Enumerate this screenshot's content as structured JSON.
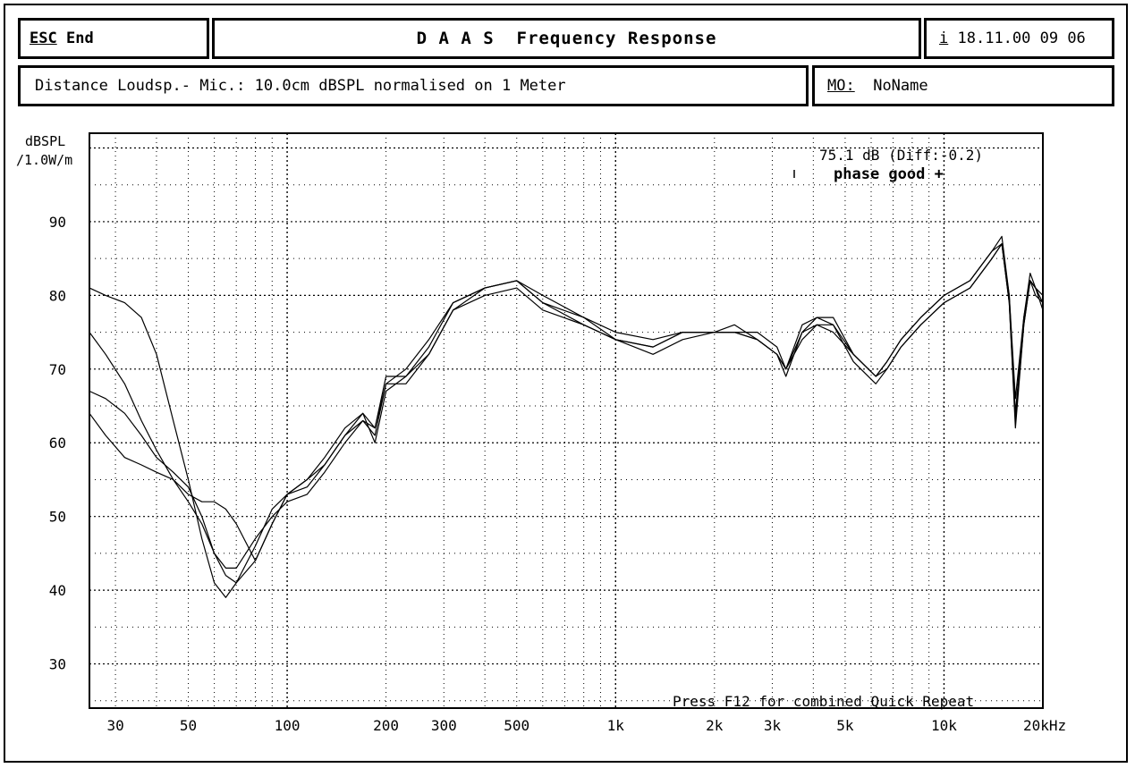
{
  "header": {
    "esc_label": "ESC",
    "end_label": "End",
    "title": "D A A S  Frequency Response",
    "info_icon": "i",
    "datetime": "18.11.00 09 06",
    "distance_text": "Distance Loudsp.- Mic.: 10.0cm dBSPL normalised on 1 Meter",
    "mo_label": "MO:",
    "mo_value": "NoName"
  },
  "chart_data": {
    "type": "line",
    "ylabel": "dBSPL",
    "ylabel_unit": "/1.0W/m",
    "x_scale": "log",
    "x_range": [
      25,
      20000
    ],
    "y_range": [
      24,
      102
    ],
    "grid": true,
    "x_ticks": [
      {
        "v": 30,
        "label": "30"
      },
      {
        "v": 50,
        "label": "50"
      },
      {
        "v": 100,
        "label": "100"
      },
      {
        "v": 200,
        "label": "200"
      },
      {
        "v": 300,
        "label": "300"
      },
      {
        "v": 500,
        "label": "500"
      },
      {
        "v": 1000,
        "label": "1k"
      },
      {
        "v": 2000,
        "label": "2k"
      },
      {
        "v": 3000,
        "label": "3k"
      },
      {
        "v": 5000,
        "label": "5k"
      },
      {
        "v": 10000,
        "label": "10k"
      },
      {
        "v": 20000,
        "label": "20kHz"
      }
    ],
    "y_ticks": [
      30,
      40,
      50,
      60,
      70,
      80,
      90
    ],
    "annotation_level": "75.1 dB (Diff:-0.2)",
    "annotation_phase": "phase good +",
    "footer_note": "Press F12 for combined Quick Repeat",
    "series": [
      {
        "x": [
          25,
          28,
          32,
          36,
          40,
          45,
          50,
          55,
          60,
          65,
          70,
          80,
          90,
          100,
          115,
          130,
          150,
          170,
          185,
          200,
          230,
          270,
          320,
          400,
          500,
          600,
          800,
          1000,
          1300,
          1600,
          2000,
          2300,
          2700,
          3100,
          3300,
          3700,
          4100,
          4600,
          5300,
          6200,
          6700,
          7400,
          8500,
          10000,
          12000,
          14000,
          15000,
          15800,
          16500,
          17500,
          18300,
          19000,
          20000
        ],
        "y": [
          81,
          80,
          79,
          77,
          72,
          63,
          55,
          47,
          41,
          39,
          41,
          46,
          51,
          53,
          55,
          58,
          62,
          64,
          60,
          67,
          69,
          73,
          79,
          81,
          82,
          80,
          77,
          75,
          74,
          75,
          75,
          75,
          74,
          72,
          70,
          75,
          77,
          76,
          72,
          69,
          71,
          74,
          77,
          80,
          82,
          86,
          87,
          80,
          64,
          77,
          83,
          81,
          79
        ]
      },
      {
        "x": [
          25,
          28,
          32,
          36,
          40,
          45,
          50,
          55,
          60,
          65,
          70,
          80,
          90,
          100,
          115,
          130,
          150,
          170,
          185,
          200,
          230,
          270,
          320,
          400,
          500,
          600,
          800,
          1000,
          1300,
          1600,
          2000,
          2300,
          2700,
          3100,
          3300,
          3700,
          4100,
          4600,
          5300,
          6200,
          6700,
          7400,
          8500,
          10000,
          12000,
          14000,
          15000,
          15800,
          16500,
          17500,
          18300,
          19000,
          20000
        ],
        "y": [
          75,
          72,
          68,
          63,
          59,
          55,
          52,
          49,
          45,
          42,
          41,
          44,
          49,
          53,
          54,
          57,
          61,
          63,
          61,
          68,
          70,
          74,
          79,
          81,
          82,
          79,
          77,
          74,
          73,
          75,
          75,
          75,
          75,
          73,
          70,
          76,
          77,
          77,
          72,
          69,
          71,
          74,
          77,
          80,
          82,
          86,
          88,
          80,
          66,
          77,
          82,
          81,
          80
        ]
      },
      {
        "x": [
          25,
          28,
          32,
          36,
          40,
          45,
          50,
          55,
          60,
          65,
          70,
          80,
          90,
          100,
          115,
          130,
          150,
          170,
          185,
          200,
          230,
          270,
          320,
          400,
          500,
          600,
          800,
          1000,
          1300,
          1600,
          2000,
          2300,
          2700,
          3100,
          3300,
          3700,
          4100,
          4600,
          5300,
          6200,
          6700,
          7400,
          8500,
          10000,
          12000,
          14000,
          15000,
          15800,
          16500,
          17500,
          18300,
          19000,
          20000
        ],
        "y": [
          67,
          66,
          64,
          61,
          58,
          56,
          54,
          50,
          45,
          43,
          43,
          47,
          50,
          52,
          53,
          56,
          60,
          63,
          62,
          69,
          69,
          72,
          78,
          81,
          82,
          79,
          76,
          74,
          73,
          75,
          75,
          76,
          74,
          72,
          69,
          75,
          76,
          76,
          71,
          68,
          70,
          73,
          76,
          79,
          81,
          85,
          87,
          79,
          62,
          76,
          82,
          80,
          79
        ]
      },
      {
        "x": [
          25,
          28,
          32,
          36,
          40,
          45,
          50,
          55,
          60,
          65,
          70,
          80,
          90,
          100,
          115,
          130,
          150,
          170,
          185,
          200,
          230,
          270,
          320,
          400,
          500,
          600,
          800,
          1000,
          1300,
          1600,
          2000,
          2300,
          2700,
          3100,
          3300,
          3700,
          4100,
          4600,
          5300,
          6200,
          6700,
          7400,
          8500,
          10000,
          12000,
          14000,
          15000,
          15800,
          16500,
          17500,
          18300,
          19000,
          20000
        ],
        "y": [
          64,
          61,
          58,
          57,
          56,
          55,
          53,
          52,
          52,
          51,
          49,
          44,
          49,
          53,
          55,
          57,
          61,
          64,
          62,
          68,
          68,
          72,
          78,
          80,
          81,
          78,
          76,
          74,
          72,
          74,
          75,
          75,
          74,
          72,
          70,
          74,
          76,
          75,
          72,
          69,
          70,
          73,
          76,
          79,
          81,
          85,
          87,
          79,
          63,
          76,
          82,
          81,
          78
        ]
      }
    ]
  }
}
